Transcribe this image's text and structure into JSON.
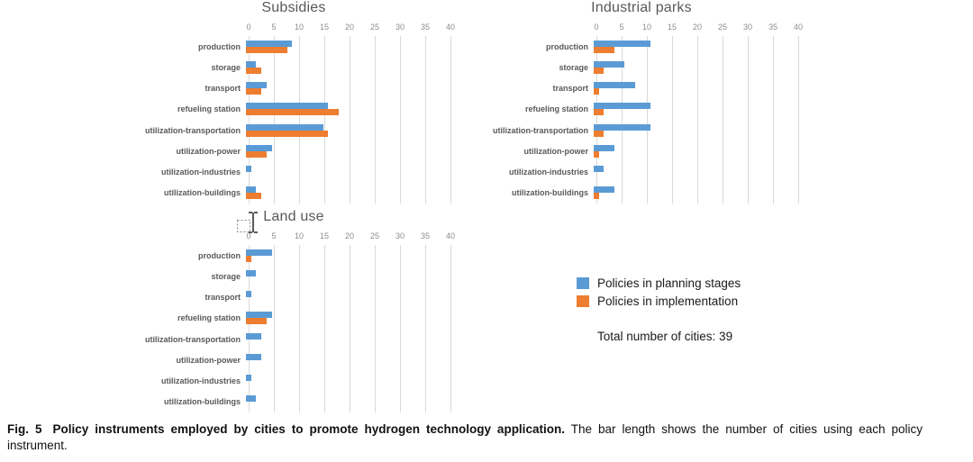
{
  "chart_data": [
    {
      "type": "bar",
      "orientation": "horizontal",
      "title": "Subsidies",
      "categories": [
        "production",
        "storage",
        "transport",
        "refueling station",
        "utilization-transportation",
        "utilization-power",
        "utilization-industries",
        "utilization-buildings"
      ],
      "series": [
        {
          "name": "Policies in planning stages",
          "color": "#5B9BD5",
          "values": [
            9,
            2,
            4,
            16,
            15,
            5,
            1,
            2
          ]
        },
        {
          "name": "Policies in implementation",
          "color": "#ED7D31",
          "values": [
            8,
            3,
            3,
            18,
            16,
            4,
            0,
            3
          ]
        }
      ],
      "xlim": [
        0,
        40
      ],
      "xticks": [
        0,
        5,
        10,
        15,
        20,
        25,
        30,
        35,
        40
      ],
      "grid": true,
      "legend_position": "none"
    },
    {
      "type": "bar",
      "orientation": "horizontal",
      "title": "Industrial parks",
      "categories": [
        "production",
        "storage",
        "transport",
        "refueling station",
        "utilization-transportation",
        "utilization-power",
        "utilization-industries",
        "utilization-buildings"
      ],
      "series": [
        {
          "name": "Policies in planning stages",
          "color": "#5B9BD5",
          "values": [
            11,
            6,
            8,
            11,
            11,
            4,
            2,
            4
          ]
        },
        {
          "name": "Policies in implementation",
          "color": "#ED7D31",
          "values": [
            4,
            2,
            1,
            2,
            2,
            1,
            0,
            1
          ]
        }
      ],
      "xlim": [
        0,
        40
      ],
      "xticks": [
        0,
        5,
        10,
        15,
        20,
        25,
        30,
        35,
        40
      ],
      "grid": true,
      "legend_position": "none"
    },
    {
      "type": "bar",
      "orientation": "horizontal",
      "title": "Land use",
      "categories": [
        "production",
        "storage",
        "transport",
        "refueling station",
        "utilization-transportation",
        "utilization-power",
        "utilization-industries",
        "utilization-buildings"
      ],
      "series": [
        {
          "name": "Policies in planning stages",
          "color": "#5B9BD5",
          "values": [
            5,
            2,
            1,
            5,
            3,
            3,
            1,
            2
          ]
        },
        {
          "name": "Policies in implementation",
          "color": "#ED7D31",
          "values": [
            1,
            0,
            0,
            4,
            0,
            0,
            0,
            0
          ]
        }
      ],
      "xlim": [
        0,
        40
      ],
      "xticks": [
        0,
        5,
        10,
        15,
        20,
        25,
        30,
        35,
        40
      ],
      "grid": true,
      "legend_position": "none"
    }
  ],
  "legend": {
    "items": [
      {
        "label": "Policies in planning stages",
        "color": "#5B9BD5"
      },
      {
        "label": "Policies in implementation",
        "color": "#ED7D31"
      }
    ],
    "total_text": "Total number of cities: 39"
  },
  "caption": {
    "fig_label": "Fig. 5",
    "title_bold": "Policy instruments employed by cities to promote hydrogen technology application.",
    "body": "The bar length shows the number of cities using each policy instrument."
  },
  "colors": {
    "series_planning": "#5B9BD5",
    "series_implementation": "#ED7D31",
    "gridline": "#D9D9D9",
    "axis_tick_text": "#8C8C8C",
    "chart_text": "#595959"
  }
}
